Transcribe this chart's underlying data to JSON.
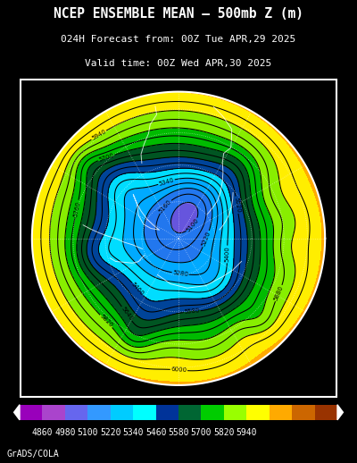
{
  "title_line1": "NCEP ENSEMBLE MEAN – 500mb Z (m)",
  "title_line2": "024H Forecast from: 00Z Tue APR,29 2025",
  "title_line3": "Valid time: 00Z Wed APR,30 2025",
  "colorbar_values": [
    4860,
    4980,
    5100,
    5220,
    5340,
    5460,
    5580,
    5700,
    5820,
    5940
  ],
  "colorbar_colors": [
    "#9900bb",
    "#aa44cc",
    "#6666ee",
    "#3399ff",
    "#00ccff",
    "#00ffff",
    "#003399",
    "#006633",
    "#00cc00",
    "#99ff00",
    "#ffff00",
    "#ffaa00",
    "#cc6600",
    "#993300"
  ],
  "bg_color": "#000000",
  "grads_text": "GrADS/COLA",
  "fig_width": 4.0,
  "fig_height": 5.18
}
